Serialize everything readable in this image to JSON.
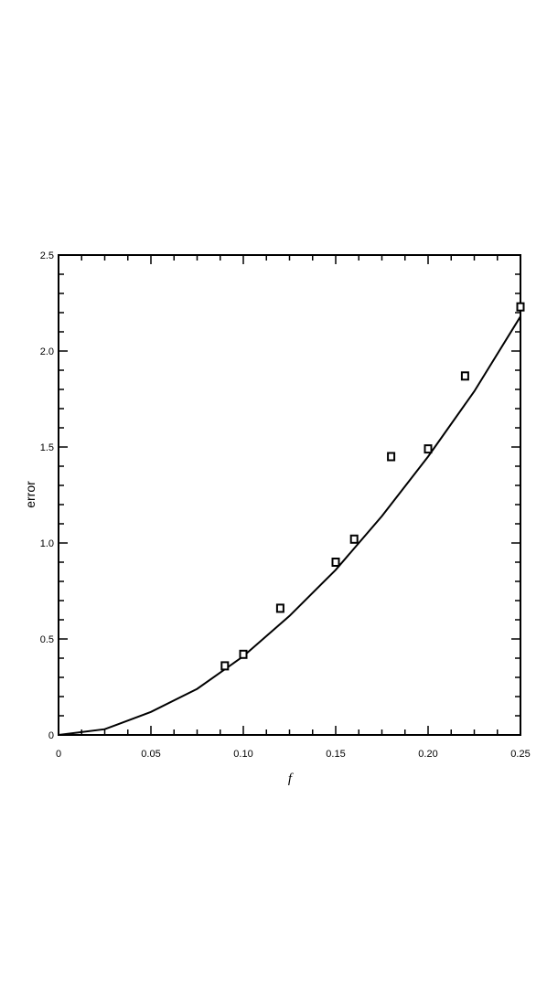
{
  "chart_data": {
    "type": "scatter",
    "xlabel": "f",
    "ylabel": "error",
    "xlim": [
      0,
      0.25
    ],
    "ylim": [
      0,
      2.5
    ],
    "xticks": [
      0,
      0.05,
      {
        "value": 0.1,
        "label": "0.10"
      },
      0.15,
      {
        "value": 0.2,
        "label": "0.20"
      },
      0.25
    ],
    "yticks": [
      0,
      0.5,
      {
        "value": 1,
        "label": "1.0"
      },
      1.5,
      {
        "value": 2,
        "label": "2.0"
      },
      2.5
    ],
    "x_minor_divisions": 4,
    "y_minor_divisions": 5,
    "color": "#000000",
    "points": {
      "x": [
        0.09,
        0.1,
        0.12,
        0.15,
        0.16,
        0.18,
        0.2,
        0.22,
        0.25
      ],
      "y": [
        0.36,
        0.42,
        0.66,
        0.9,
        1.02,
        1.45,
        1.49,
        1.87,
        2.23
      ]
    },
    "curve": {
      "x": [
        0,
        0.025,
        0.05,
        0.075,
        0.1,
        0.125,
        0.15,
        0.175,
        0.2,
        0.225,
        0.25
      ],
      "y": [
        0,
        0.03,
        0.12,
        0.24,
        0.41,
        0.62,
        0.86,
        1.14,
        1.45,
        1.79,
        2.18
      ]
    }
  }
}
